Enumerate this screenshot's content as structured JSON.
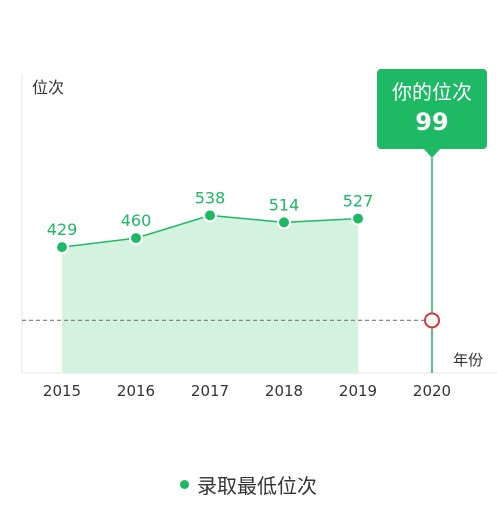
{
  "chart_data": {
    "type": "area",
    "ylabel": "位次",
    "xlabel": "年份",
    "x": [
      "2015",
      "2016",
      "2017",
      "2018",
      "2019",
      "2020"
    ],
    "series": [
      {
        "name": "录取最低位次",
        "x": [
          "2015",
          "2016",
          "2017",
          "2018",
          "2019"
        ],
        "values": [
          429,
          460,
          538,
          514,
          527
        ]
      }
    ],
    "your_rank": {
      "label": "你的位次",
      "year": "2020",
      "value": 99
    },
    "grid": false,
    "legend_position": "bottom-center"
  },
  "colors": {
    "accent": "#1db964",
    "area_fill": "#d3f2e0",
    "marker_red": "#d9363e",
    "reference_line": "#777777",
    "axis": "#e6e6e6",
    "text": "#333333"
  }
}
